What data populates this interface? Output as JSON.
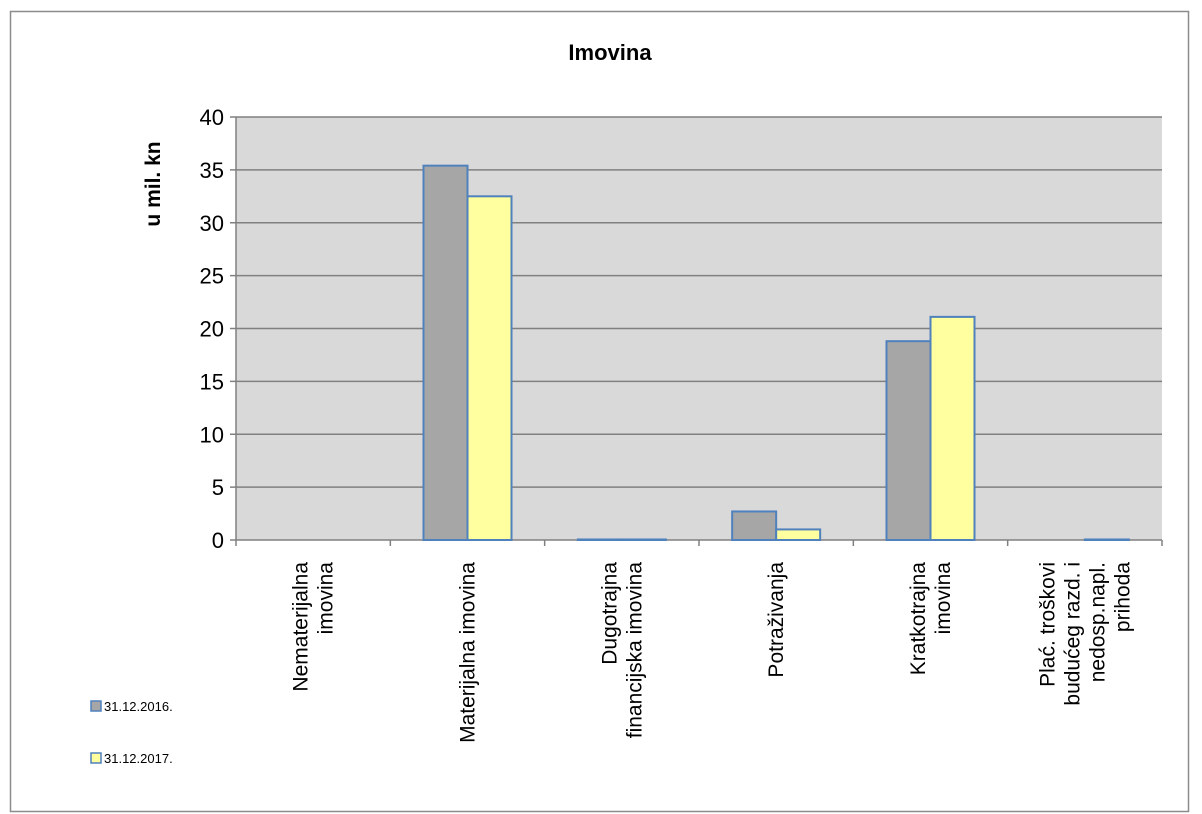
{
  "chart_data": {
    "type": "bar",
    "title": "Imovina",
    "xlabel": "",
    "ylabel": "u mil. kn",
    "ylim": [
      0,
      40
    ],
    "yticks": [
      0,
      5,
      10,
      15,
      20,
      25,
      30,
      35,
      40
    ],
    "grid": true,
    "legend_position": "bottom-left",
    "categories": [
      [
        "Nematerijalna",
        "imovina"
      ],
      [
        "Materijalna imovina"
      ],
      [
        "Dugotrajna",
        "financijska imovina"
      ],
      [
        "Potraživanja"
      ],
      [
        "Kratkotrajna",
        "imovina"
      ],
      [
        "Plać. troškovi",
        "budućeg razd. i",
        "nedosp.napl.",
        "prihoda"
      ]
    ],
    "series": [
      {
        "name": "31.12.2016.",
        "color": "#a6a6a6",
        "values": [
          0,
          35.4,
          0.05,
          2.7,
          18.8,
          0
        ]
      },
      {
        "name": "31.12.2017.",
        "color": "#ffffa0",
        "values": [
          0,
          32.5,
          0.05,
          1.0,
          21.1,
          0.05
        ]
      }
    ],
    "colors": {
      "plot_background": "#d9d9d9",
      "bar_border": "#4f81bd",
      "gridline": "#808080"
    }
  }
}
